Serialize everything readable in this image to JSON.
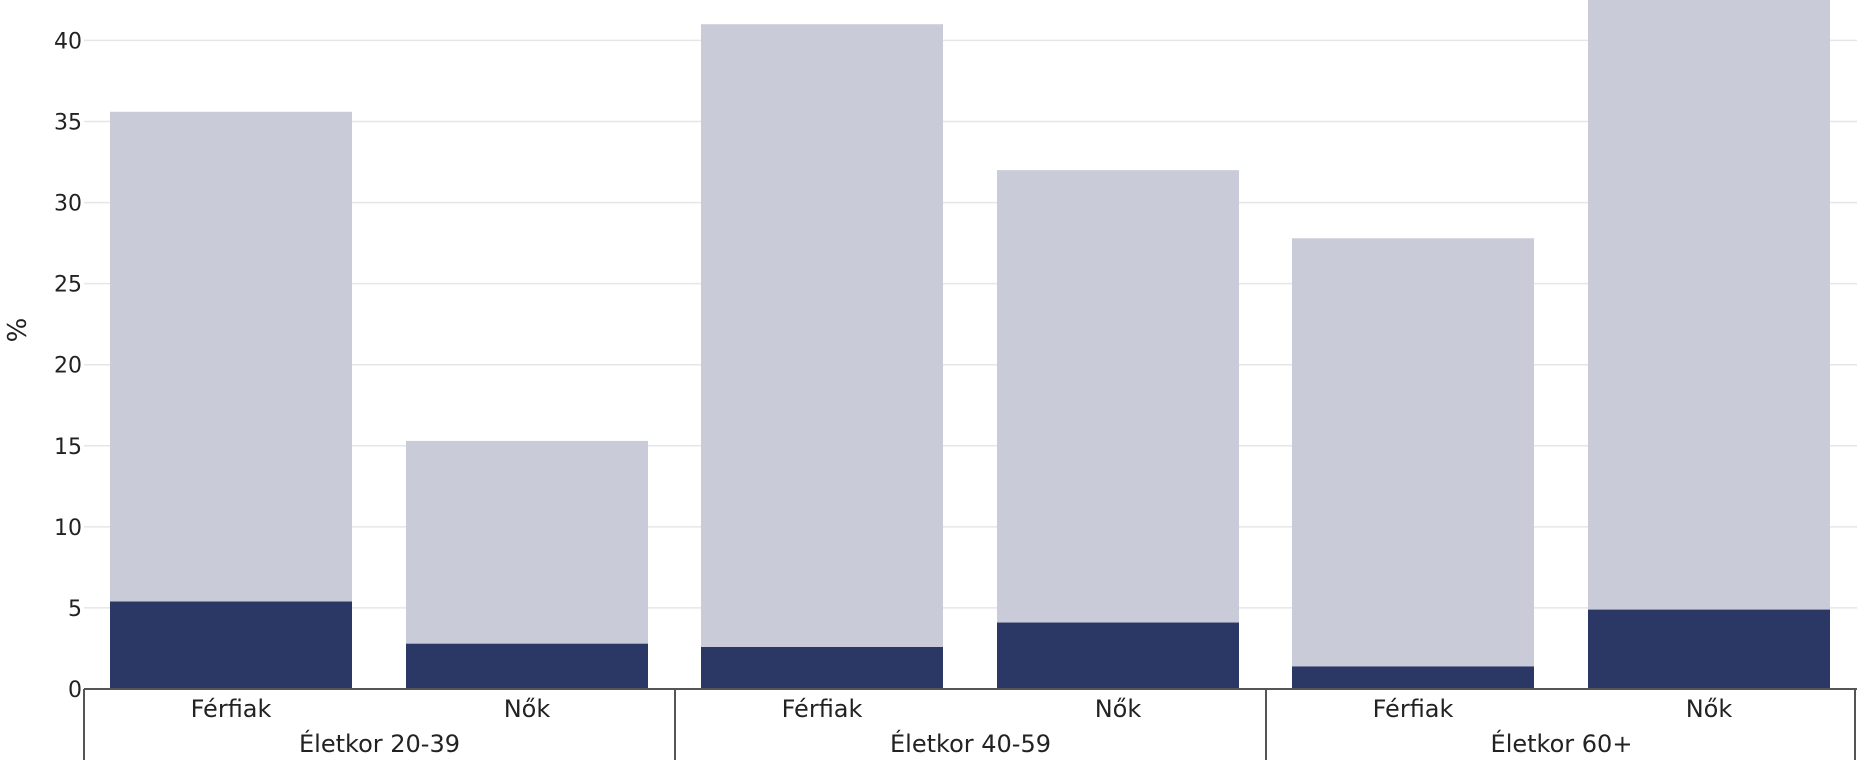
{
  "chart_data": {
    "type": "bar",
    "stacked": true,
    "ylabel": "%",
    "ylim": [
      0,
      42
    ],
    "yticks": [
      0,
      5,
      10,
      15,
      20,
      25,
      30,
      35,
      40
    ],
    "grid": true,
    "groups": [
      {
        "label": "Életkor 20-39",
        "categories": [
          "Férfiak",
          "Nők"
        ]
      },
      {
        "label": "Életkor 40-59",
        "categories": [
          "Férfiak",
          "Nők"
        ]
      },
      {
        "label": "Életkor 60+",
        "categories": [
          "Férfiak",
          "Nők"
        ]
      }
    ],
    "series": [
      {
        "color": "#2b3764",
        "values": [
          5.4,
          2.8,
          2.6,
          4.1,
          1.4,
          4.9
        ]
      },
      {
        "color": "#c9ccd8",
        "values": [
          30.2,
          12.5,
          38.4,
          27.9,
          26.4,
          37.8
        ]
      }
    ]
  }
}
